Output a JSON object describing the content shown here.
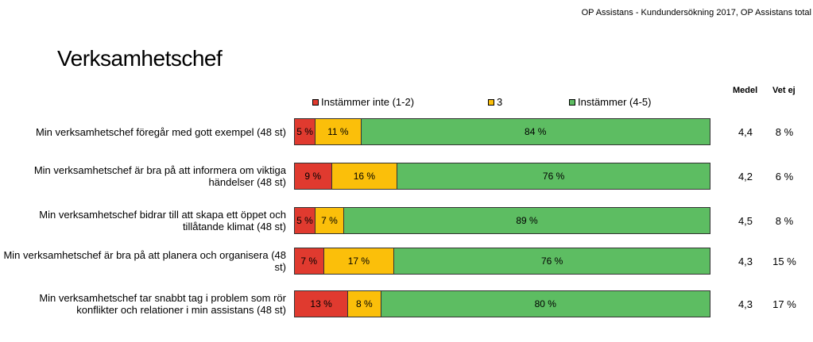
{
  "header_note": "OP Assistans - Kundundersökning 2017, OP Assistans total",
  "colors": {
    "disagree": "#e03a2f",
    "neutral": "#fbbf0a",
    "agree": "#5dbd62"
  },
  "chart_data": {
    "type": "bar",
    "orientation": "horizontal",
    "stacked": true,
    "title": "Verksamhetschef",
    "column_headers": {
      "medel": "Medel",
      "vet_ej": "Vet ej"
    },
    "legend": [
      "Instämmer inte (1-2)",
      "3",
      "Instämmer (4-5)"
    ],
    "categories": [
      "Min verksamhetschef föregår med gott exempel (48 st)",
      "Min verksamhetschef är bra på att informera om viktiga händelser (48 st)",
      "Min verksamhetschef bidrar till att skapa ett öppet och tillåtande klimat (48 st)",
      "Min verksamhetschef är bra på att planera och organisera (48 st)",
      "Min verksamhetschef tar snabbt tag i problem som rör konflikter och relationer i min assistans (48 st)"
    ],
    "series": [
      {
        "name": "Instämmer inte (1-2)",
        "values": [
          5,
          9,
          5,
          7,
          13
        ],
        "labels": [
          "5 %",
          "9 %",
          "5 %",
          "7 %",
          "13 %"
        ]
      },
      {
        "name": "3",
        "values": [
          11,
          16,
          7,
          17,
          8
        ],
        "labels": [
          "11 %",
          "16 %",
          "7 %",
          "17 %",
          "8 %"
        ]
      },
      {
        "name": "Instämmer (4-5)",
        "values": [
          84,
          76,
          89,
          76,
          80
        ],
        "labels": [
          "84 %",
          "76 %",
          "89 %",
          "76 %",
          "80 %"
        ]
      }
    ],
    "medel": [
      "4,4",
      "4,2",
      "4,5",
      "4,3",
      "4,3"
    ],
    "vet_ej": [
      "8 %",
      "6 %",
      "8 %",
      "15 %",
      "17 %"
    ],
    "xlim": [
      0,
      100
    ]
  }
}
